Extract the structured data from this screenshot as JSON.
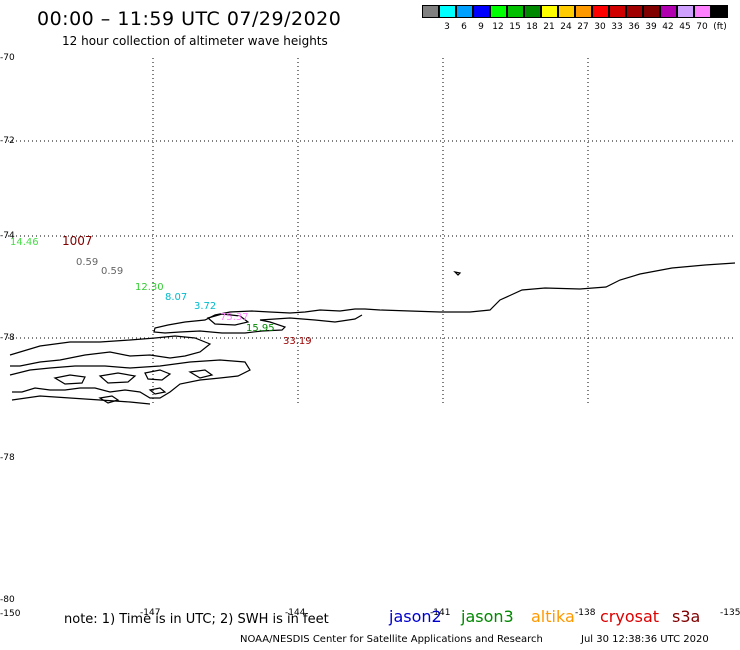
{
  "header": {
    "title": "00:00 – 11:59 UTC 07/29/2020",
    "subtitle": "12 hour collection of altimeter wave heights"
  },
  "legend": {
    "unit": "(ft)",
    "entries": [
      {
        "label": "",
        "color": "#808080"
      },
      {
        "label": "3",
        "color": "#00ffff"
      },
      {
        "label": "6",
        "color": "#00a0ff"
      },
      {
        "label": "9",
        "color": "#0000ff"
      },
      {
        "label": "12",
        "color": "#00ff00"
      },
      {
        "label": "15",
        "color": "#00c000"
      },
      {
        "label": "18",
        "color": "#008800"
      },
      {
        "label": "21",
        "color": "#ffff00"
      },
      {
        "label": "24",
        "color": "#ffcc00"
      },
      {
        "label": "27",
        "color": "#ff9900"
      },
      {
        "label": "30",
        "color": "#ff0000"
      },
      {
        "label": "33",
        "color": "#d00000"
      },
      {
        "label": "36",
        "color": "#a00000"
      },
      {
        "label": "39",
        "color": "#800000"
      },
      {
        "label": "42",
        "color": "#b000b0"
      },
      {
        "label": "45",
        "color": "#d0a0ff"
      },
      {
        "label": "70",
        "color": "#ff80ff"
      },
      {
        "label": "",
        "color": "#000000"
      }
    ]
  },
  "map": {
    "lat_labels": [
      "-70",
      "-72",
      "-74",
      "-76",
      "-78",
      "-78",
      "-80"
    ],
    "lon_labels": [
      "-150",
      "-147",
      "-144",
      "-141",
      "-138",
      "-135"
    ]
  },
  "wave_heights": [
    {
      "value": "14.46",
      "color": "#44dd44"
    },
    {
      "value": "1007",
      "color": "#800000"
    },
    {
      "value": "0.59",
      "color": "#666666"
    },
    {
      "value": "0.59",
      "color": "#666666"
    },
    {
      "value": "12.30",
      "color": "#33cc33"
    },
    {
      "value": "8.07",
      "color": "#00bbcc"
    },
    {
      "value": "3.72",
      "color": "#00bbcc"
    },
    {
      "value": "75.37",
      "color": "#ff80ff"
    },
    {
      "value": "15.95",
      "color": "#008800"
    },
    {
      "value": "33.19",
      "color": "#a00000"
    }
  ],
  "footer": {
    "note": "note: 1) Time is in UTC; 2) SWH is in feet",
    "satellites": [
      {
        "name": "jason2",
        "color": "#0000cc"
      },
      {
        "name": "jason3",
        "color": "#008800"
      },
      {
        "name": "altika",
        "color": "#ff9900"
      },
      {
        "name": "cryosat",
        "color": "#dd0000"
      },
      {
        "name": "s3a",
        "color": "#800000"
      }
    ],
    "credit": "NOAA/NESDIS Center for Satellite Applications and Research",
    "timestamp": "Jul 30 12:38:36 UTC 2020"
  }
}
